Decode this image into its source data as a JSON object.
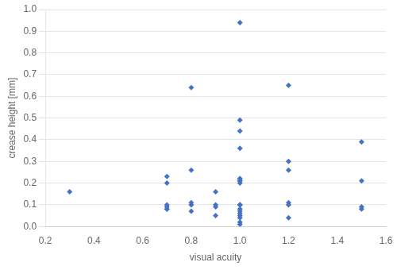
{
  "chart_data": {
    "type": "scatter",
    "x": [
      0.3,
      0.7,
      0.7,
      0.7,
      0.7,
      0.7,
      0.7,
      0.8,
      0.8,
      0.8,
      0.8,
      0.8,
      0.9,
      0.9,
      0.9,
      0.9,
      1.0,
      1.0,
      1.0,
      1.0,
      1.0,
      1.0,
      1.0,
      1.0,
      1.0,
      1.0,
      1.0,
      1.0,
      1.0,
      1.0,
      1.0,
      1.0,
      1.0,
      1.0,
      1.0,
      1.2,
      1.2,
      1.2,
      1.2,
      1.2,
      1.2,
      1.5,
      1.5,
      1.5,
      1.5
    ],
    "values": [
      0.16,
      0.2,
      0.23,
      0.08,
      0.08,
      0.09,
      0.1,
      0.64,
      0.11,
      0.1,
      0.07,
      0.26,
      0.16,
      0.1,
      0.05,
      0.09,
      0.94,
      0.49,
      0.44,
      0.36,
      0.22,
      0.21,
      0.21,
      0.22,
      0.2,
      0.1,
      0.1,
      0.1,
      0.08,
      0.07,
      0.06,
      0.05,
      0.04,
      0.02,
      0.01,
      0.65,
      0.3,
      0.26,
      0.11,
      0.1,
      0.04,
      0.39,
      0.21,
      0.09,
      0.08
    ],
    "color": "#4472C4",
    "marker": "diamond",
    "xlabel": "visual acuity",
    "ylabel": "crease height [mm]",
    "xlim": [
      0.2,
      1.6
    ],
    "xticks": [
      0.2,
      0.4,
      0.6,
      0.8,
      {
        "value": 1.0,
        "label": "1.0"
      },
      1.2,
      1.4,
      1.6
    ],
    "ylim": [
      0.0,
      1.0
    ],
    "yticks": [
      {
        "value": 0.0,
        "label": "0.0"
      },
      0.1,
      0.2,
      0.3,
      0.4,
      0.5,
      0.6,
      0.7,
      0.8,
      0.9,
      {
        "value": 1.0,
        "label": "1.0"
      }
    ],
    "grid": "y"
  }
}
